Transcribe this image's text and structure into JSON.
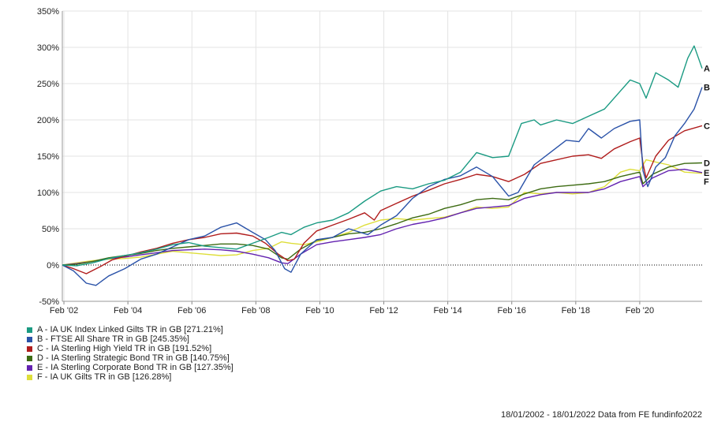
{
  "chart_data": {
    "type": "line",
    "ylim": [
      -50,
      350
    ],
    "yticks": [
      -50,
      0,
      50,
      100,
      150,
      200,
      250,
      300,
      350
    ],
    "ytick_labels": [
      "-50%",
      "0%",
      "50%",
      "100%",
      "150%",
      "200%",
      "250%",
      "300%",
      "350%"
    ],
    "xlim": [
      2002.05,
      2022.05
    ],
    "xticks": [
      2002.1,
      2004.1,
      2006.1,
      2008.1,
      2010.1,
      2012.1,
      2014.1,
      2016.1,
      2018.1,
      2020.1
    ],
    "xtick_labels": [
      "Feb '02",
      "Feb '04",
      "Feb '06",
      "Feb '08",
      "Feb '10",
      "Feb '12",
      "Feb '14",
      "Feb '16",
      "Feb '18",
      "Feb '20"
    ],
    "grid": true,
    "legend_position": "bottom-left",
    "series": [
      {
        "letter": "A",
        "name": "A - IA UK Index Linked Gilts TR in GB [271.21%]",
        "color": "#1a9a82",
        "points": [
          [
            2002.05,
            0
          ],
          [
            2002.5,
            -1
          ],
          [
            2003,
            3
          ],
          [
            2003.5,
            9
          ],
          [
            2004,
            13
          ],
          [
            2004.5,
            17
          ],
          [
            2005,
            22
          ],
          [
            2005.5,
            28
          ],
          [
            2006,
            31
          ],
          [
            2006.5,
            26
          ],
          [
            2007,
            24
          ],
          [
            2007.5,
            22
          ],
          [
            2008,
            30
          ],
          [
            2008.5,
            38
          ],
          [
            2008.9,
            45
          ],
          [
            2009.2,
            42
          ],
          [
            2009.6,
            52
          ],
          [
            2010,
            58
          ],
          [
            2010.5,
            62
          ],
          [
            2011,
            72
          ],
          [
            2011.5,
            88
          ],
          [
            2012,
            102
          ],
          [
            2012.5,
            108
          ],
          [
            2013,
            105
          ],
          [
            2013.5,
            112
          ],
          [
            2014,
            117
          ],
          [
            2014.5,
            128
          ],
          [
            2015,
            155
          ],
          [
            2015.5,
            148
          ],
          [
            2016,
            150
          ],
          [
            2016.4,
            195
          ],
          [
            2016.8,
            200
          ],
          [
            2017,
            193
          ],
          [
            2017.5,
            200
          ],
          [
            2018,
            195
          ],
          [
            2018.5,
            205
          ],
          [
            2019,
            215
          ],
          [
            2019.5,
            240
          ],
          [
            2019.8,
            255
          ],
          [
            2020.1,
            250
          ],
          [
            2020.3,
            230
          ],
          [
            2020.6,
            265
          ],
          [
            2021,
            255
          ],
          [
            2021.3,
            245
          ],
          [
            2021.6,
            285
          ],
          [
            2021.8,
            302
          ],
          [
            2022.05,
            271
          ]
        ]
      },
      {
        "letter": "B",
        "name": "B - FTSE All Share TR in GB [245.35%]",
        "color": "#2a52a8",
        "points": [
          [
            2002.05,
            0
          ],
          [
            2002.4,
            -8
          ],
          [
            2002.8,
            -25
          ],
          [
            2003.1,
            -28
          ],
          [
            2003.5,
            -15
          ],
          [
            2004,
            -5
          ],
          [
            2004.5,
            8
          ],
          [
            2005,
            15
          ],
          [
            2005.5,
            25
          ],
          [
            2006,
            35
          ],
          [
            2006.5,
            40
          ],
          [
            2007,
            52
          ],
          [
            2007.5,
            58
          ],
          [
            2008,
            45
          ],
          [
            2008.4,
            35
          ],
          [
            2008.7,
            20
          ],
          [
            2009.0,
            -5
          ],
          [
            2009.2,
            -10
          ],
          [
            2009.5,
            15
          ],
          [
            2010,
            35
          ],
          [
            2010.5,
            38
          ],
          [
            2011,
            50
          ],
          [
            2011.6,
            42
          ],
          [
            2012,
            55
          ],
          [
            2012.5,
            68
          ],
          [
            2013,
            92
          ],
          [
            2013.5,
            108
          ],
          [
            2014,
            118
          ],
          [
            2014.5,
            123
          ],
          [
            2015,
            135
          ],
          [
            2015.5,
            122
          ],
          [
            2016,
            95
          ],
          [
            2016.3,
            100
          ],
          [
            2016.8,
            138
          ],
          [
            2017.3,
            155
          ],
          [
            2017.8,
            172
          ],
          [
            2018.2,
            170
          ],
          [
            2018.5,
            188
          ],
          [
            2018.9,
            175
          ],
          [
            2019.3,
            188
          ],
          [
            2019.8,
            198
          ],
          [
            2020.1,
            200
          ],
          [
            2020.2,
            130
          ],
          [
            2020.35,
            108
          ],
          [
            2020.6,
            135
          ],
          [
            2020.9,
            148
          ],
          [
            2021.2,
            178
          ],
          [
            2021.5,
            195
          ],
          [
            2021.8,
            215
          ],
          [
            2022.05,
            245
          ]
        ]
      },
      {
        "letter": "C",
        "name": "C - IA Sterling High Yield TR in GB [191.52%]",
        "color": "#b01c1c",
        "points": [
          [
            2002.05,
            0
          ],
          [
            2002.4,
            -5
          ],
          [
            2002.8,
            -12
          ],
          [
            2003.2,
            -3
          ],
          [
            2003.6,
            7
          ],
          [
            2004,
            12
          ],
          [
            2004.5,
            18
          ],
          [
            2005,
            23
          ],
          [
            2005.5,
            30
          ],
          [
            2006,
            35
          ],
          [
            2006.5,
            38
          ],
          [
            2007,
            43
          ],
          [
            2007.5,
            44
          ],
          [
            2008,
            40
          ],
          [
            2008.4,
            30
          ],
          [
            2008.8,
            15
          ],
          [
            2009.1,
            6
          ],
          [
            2009.3,
            8
          ],
          [
            2009.6,
            30
          ],
          [
            2010,
            47
          ],
          [
            2010.5,
            55
          ],
          [
            2011,
            63
          ],
          [
            2011.5,
            72
          ],
          [
            2011.8,
            62
          ],
          [
            2012,
            75
          ],
          [
            2012.5,
            85
          ],
          [
            2013,
            95
          ],
          [
            2013.5,
            103
          ],
          [
            2014,
            112
          ],
          [
            2014.5,
            118
          ],
          [
            2015,
            125
          ],
          [
            2015.5,
            122
          ],
          [
            2016,
            115
          ],
          [
            2016.5,
            125
          ],
          [
            2017,
            140
          ],
          [
            2017.5,
            145
          ],
          [
            2018,
            150
          ],
          [
            2018.5,
            152
          ],
          [
            2018.9,
            147
          ],
          [
            2019.3,
            160
          ],
          [
            2019.8,
            170
          ],
          [
            2020.1,
            175
          ],
          [
            2020.2,
            140
          ],
          [
            2020.3,
            120
          ],
          [
            2020.6,
            150
          ],
          [
            2021,
            172
          ],
          [
            2021.5,
            185
          ],
          [
            2022.05,
            192
          ]
        ]
      },
      {
        "letter": "D",
        "name": "D - IA Sterling Strategic Bond TR in GB [140.75%]",
        "color": "#3d6b12",
        "points": [
          [
            2002.05,
            0
          ],
          [
            2002.5,
            1
          ],
          [
            2003,
            5
          ],
          [
            2003.5,
            10
          ],
          [
            2004,
            13
          ],
          [
            2004.5,
            16
          ],
          [
            2005,
            20
          ],
          [
            2005.5,
            23
          ],
          [
            2006,
            25
          ],
          [
            2006.5,
            27
          ],
          [
            2007,
            29
          ],
          [
            2007.5,
            29
          ],
          [
            2008,
            27
          ],
          [
            2008.5,
            22
          ],
          [
            2008.9,
            10
          ],
          [
            2009.1,
            8
          ],
          [
            2009.5,
            22
          ],
          [
            2010,
            34
          ],
          [
            2010.5,
            38
          ],
          [
            2011,
            43
          ],
          [
            2011.5,
            45
          ],
          [
            2012,
            50
          ],
          [
            2012.5,
            57
          ],
          [
            2013,
            65
          ],
          [
            2013.5,
            70
          ],
          [
            2014,
            78
          ],
          [
            2014.5,
            83
          ],
          [
            2015,
            90
          ],
          [
            2015.5,
            92
          ],
          [
            2016,
            90
          ],
          [
            2016.5,
            98
          ],
          [
            2017,
            105
          ],
          [
            2017.5,
            108
          ],
          [
            2018,
            110
          ],
          [
            2018.5,
            112
          ],
          [
            2019,
            115
          ],
          [
            2019.5,
            122
          ],
          [
            2020.1,
            128
          ],
          [
            2020.2,
            112
          ],
          [
            2020.5,
            125
          ],
          [
            2021,
            135
          ],
          [
            2021.5,
            140
          ],
          [
            2022.05,
            140.75
          ]
        ]
      },
      {
        "letter": "E",
        "name": "E - IA Sterling Corporate Bond TR in GB [127.35%]",
        "color": "#6322b0",
        "points": [
          [
            2002.05,
            0
          ],
          [
            2002.5,
            2
          ],
          [
            2003,
            5
          ],
          [
            2003.5,
            9
          ],
          [
            2004,
            11
          ],
          [
            2004.5,
            14
          ],
          [
            2005,
            17
          ],
          [
            2005.5,
            20
          ],
          [
            2006,
            21
          ],
          [
            2006.5,
            22
          ],
          [
            2007,
            21
          ],
          [
            2007.5,
            19
          ],
          [
            2008,
            15
          ],
          [
            2008.5,
            10
          ],
          [
            2008.9,
            3
          ],
          [
            2009.1,
            2
          ],
          [
            2009.5,
            15
          ],
          [
            2010,
            28
          ],
          [
            2010.5,
            32
          ],
          [
            2011,
            35
          ],
          [
            2011.5,
            38
          ],
          [
            2012,
            42
          ],
          [
            2012.5,
            50
          ],
          [
            2013,
            56
          ],
          [
            2013.5,
            60
          ],
          [
            2014,
            65
          ],
          [
            2014.5,
            72
          ],
          [
            2015,
            78
          ],
          [
            2015.5,
            80
          ],
          [
            2016,
            82
          ],
          [
            2016.5,
            92
          ],
          [
            2017,
            97
          ],
          [
            2017.5,
            100
          ],
          [
            2018,
            100
          ],
          [
            2018.5,
            100
          ],
          [
            2019,
            105
          ],
          [
            2019.5,
            115
          ],
          [
            2020.1,
            122
          ],
          [
            2020.2,
            108
          ],
          [
            2020.5,
            120
          ],
          [
            2021,
            130
          ],
          [
            2021.5,
            132
          ],
          [
            2022.05,
            127.35
          ]
        ]
      },
      {
        "letter": "F",
        "name": "F - IA UK Gilts TR in GB [126.28%]",
        "color": "#dede3a",
        "points": [
          [
            2002.05,
            0
          ],
          [
            2002.5,
            3
          ],
          [
            2003,
            6
          ],
          [
            2003.5,
            8
          ],
          [
            2004,
            9
          ],
          [
            2004.5,
            11
          ],
          [
            2005,
            15
          ],
          [
            2005.5,
            19
          ],
          [
            2006,
            17
          ],
          [
            2006.5,
            15
          ],
          [
            2007,
            13
          ],
          [
            2007.5,
            14
          ],
          [
            2008,
            20
          ],
          [
            2008.5,
            23
          ],
          [
            2008.9,
            32
          ],
          [
            2009.2,
            30
          ],
          [
            2009.6,
            28
          ],
          [
            2010,
            32
          ],
          [
            2010.5,
            38
          ],
          [
            2011,
            45
          ],
          [
            2011.5,
            55
          ],
          [
            2012,
            62
          ],
          [
            2012.5,
            64
          ],
          [
            2013,
            62
          ],
          [
            2013.5,
            64
          ],
          [
            2014,
            66
          ],
          [
            2014.5,
            72
          ],
          [
            2015,
            80
          ],
          [
            2015.5,
            78
          ],
          [
            2016,
            80
          ],
          [
            2016.5,
            100
          ],
          [
            2017,
            98
          ],
          [
            2017.5,
            100
          ],
          [
            2018,
            98
          ],
          [
            2018.5,
            100
          ],
          [
            2019,
            108
          ],
          [
            2019.5,
            128
          ],
          [
            2019.8,
            132
          ],
          [
            2020.1,
            130
          ],
          [
            2020.3,
            145
          ],
          [
            2020.6,
            142
          ],
          [
            2021,
            138
          ],
          [
            2021.5,
            128
          ],
          [
            2022.05,
            126.28
          ]
        ]
      }
    ]
  },
  "footer": "18/01/2002 - 18/01/2022 Data from FE fundinfo2022"
}
